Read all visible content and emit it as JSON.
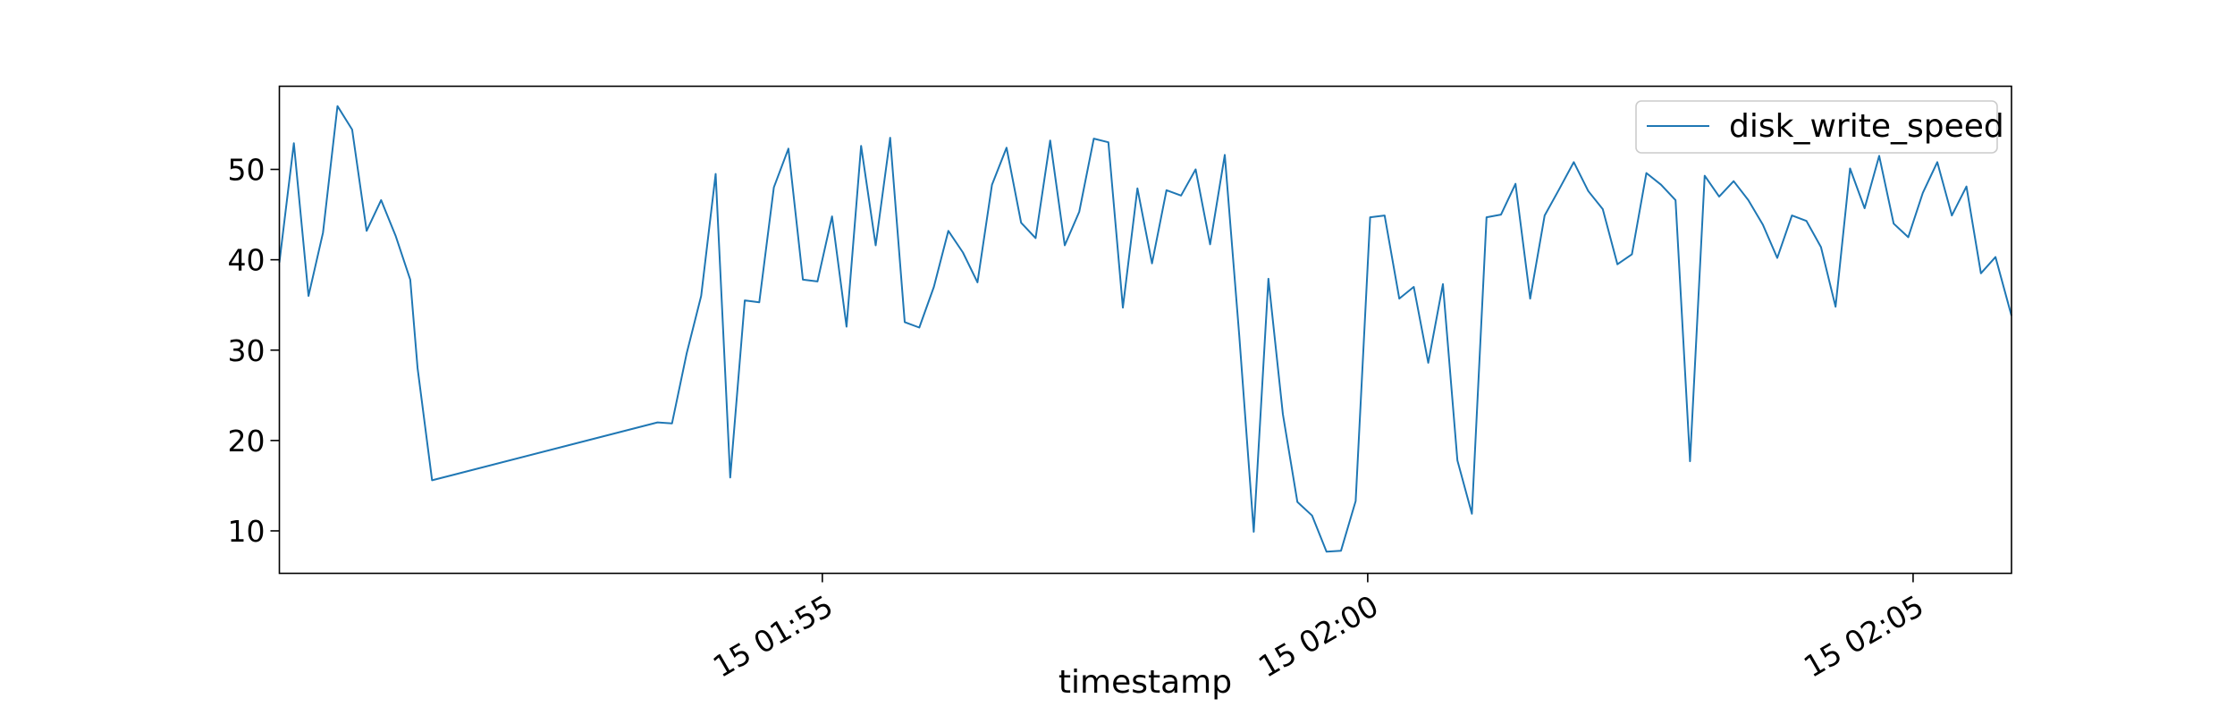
{
  "chart_data": {
    "type": "line",
    "title": "",
    "xlabel": "timestamp",
    "ylabel": "",
    "grid": false,
    "legend_position": "top-right",
    "colors": {
      "line": "#1f77b4",
      "axes": "#000000",
      "background": "#ffffff"
    },
    "x_ticks": [
      {
        "t": 4.9778,
        "label": "15 01:55"
      },
      {
        "t": 9.9778,
        "label": "15 02:00"
      },
      {
        "t": 14.9778,
        "label": "15 02:05"
      }
    ],
    "y_ticks": [
      10,
      20,
      30,
      40,
      50
    ],
    "xlim": [
      0,
      15.88
    ],
    "ylim": [
      5.3,
      59.2
    ],
    "series": [
      {
        "name": "disk_write_speed",
        "x": [
          0,
          0.133,
          0.267,
          0.4,
          0.533,
          0.667,
          0.8,
          0.933,
          1.067,
          1.2,
          1.267,
          1.4,
          3.467,
          3.6,
          3.733,
          3.867,
          4.0,
          4.133,
          4.267,
          4.4,
          4.533,
          4.667,
          4.8,
          4.933,
          5.067,
          5.2,
          5.333,
          5.467,
          5.6,
          5.733,
          5.867,
          6.0,
          6.133,
          6.267,
          6.4,
          6.533,
          6.667,
          6.8,
          6.933,
          7.067,
          7.2,
          7.333,
          7.467,
          7.6,
          7.733,
          7.867,
          8.0,
          8.133,
          8.267,
          8.4,
          8.533,
          8.667,
          8.8,
          8.933,
          9.067,
          9.2,
          9.333,
          9.467,
          9.6,
          9.733,
          9.867,
          10.0,
          10.133,
          10.267,
          10.4,
          10.533,
          10.667,
          10.8,
          10.933,
          11.067,
          11.2,
          11.333,
          11.467,
          11.6,
          11.733,
          11.867,
          12.0,
          12.133,
          12.267,
          12.4,
          12.533,
          12.667,
          12.8,
          12.933,
          13.067,
          13.2,
          13.333,
          13.467,
          13.6,
          13.733,
          13.867,
          14.0,
          14.133,
          14.267,
          14.4,
          14.533,
          14.667,
          14.8,
          14.933,
          15.067,
          15.2,
          15.333,
          15.467,
          15.6,
          15.733,
          15.88
        ],
        "y": [
          39.7,
          52.9,
          36.0,
          43.0,
          57.0,
          54.4,
          43.2,
          46.6,
          42.6,
          37.8,
          28.0,
          15.6,
          22.0,
          21.9,
          29.6,
          36.0,
          49.5,
          15.9,
          35.5,
          35.3,
          48.0,
          52.3,
          37.8,
          37.6,
          44.8,
          32.6,
          52.6,
          41.6,
          53.5,
          33.1,
          32.5,
          37.0,
          43.2,
          40.8,
          37.5,
          48.3,
          52.4,
          44.1,
          42.4,
          53.2,
          41.6,
          45.3,
          53.4,
          53.0,
          34.7,
          47.9,
          39.6,
          47.7,
          47.1,
          50.0,
          41.7,
          51.6,
          31.6,
          9.9,
          37.9,
          22.9,
          13.2,
          11.7,
          7.7,
          7.8,
          13.3,
          44.7,
          44.9,
          35.7,
          37.0,
          28.6,
          37.3,
          17.8,
          11.9,
          44.7,
          45.0,
          48.4,
          35.7,
          44.9,
          47.8,
          50.8,
          47.6,
          45.6,
          39.5,
          40.6,
          49.6,
          48.3,
          46.6,
          17.7,
          49.3,
          47.0,
          48.7,
          46.6,
          43.9,
          40.2,
          44.9,
          44.3,
          41.4,
          34.8,
          50.1,
          45.7,
          51.5,
          44.0,
          42.5,
          47.4,
          50.8,
          44.9,
          48.1,
          38.5,
          40.3,
          33.8
        ]
      }
    ]
  }
}
